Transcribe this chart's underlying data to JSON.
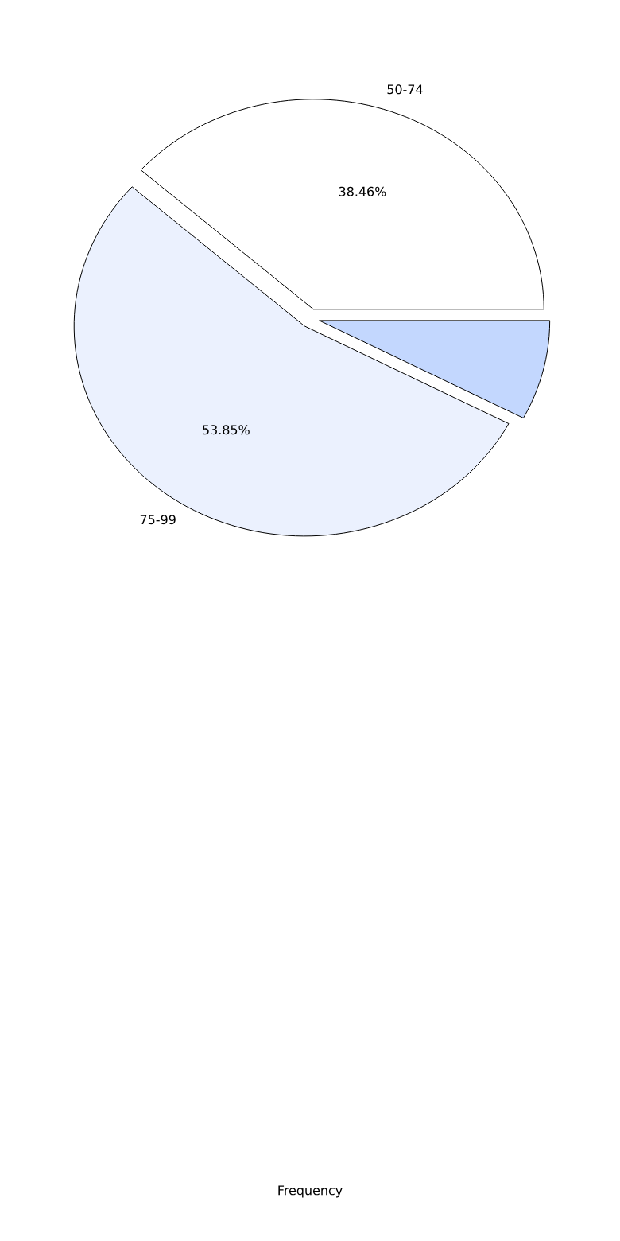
{
  "chart_data": {
    "type": "pie",
    "xlabel": "Frequency",
    "categories": [
      "50-74",
      "75-99",
      null
    ],
    "values": [
      38.46,
      53.85,
      7.69
    ],
    "value_labels": [
      "38.46%",
      "53.85%",
      null
    ],
    "colors": [
      "#ffffff",
      "#ebf1fe",
      "#c3d7fe"
    ]
  }
}
